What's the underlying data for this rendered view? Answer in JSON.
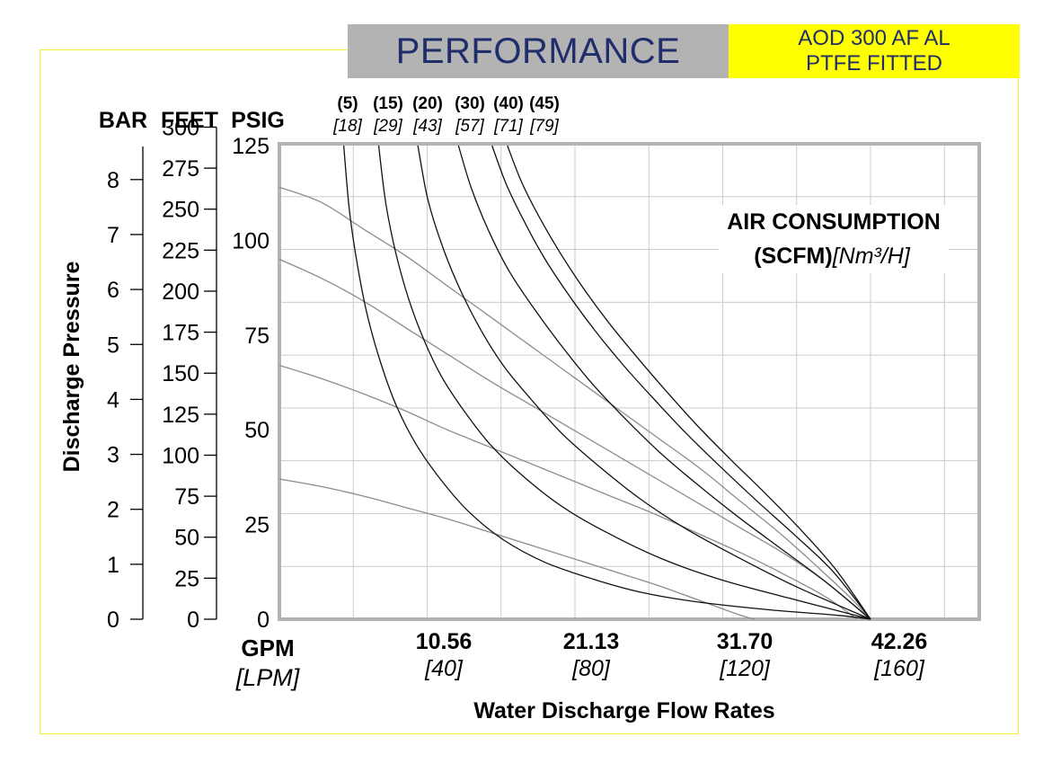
{
  "header": {
    "title": "PERFORMANCE",
    "model_line1": "AOD 300 AF AL",
    "model_line2": "PTFE FITTED"
  },
  "colors": {
    "title_bg": "#b3b3b3",
    "title_text": "#1f2d6b",
    "model_bg": "#ffff00",
    "frame": "#f2ee3a",
    "grid": "#cccccc",
    "plot_border": "#b3b3b3",
    "air_curve": "#111111",
    "pressure_curve": "#8c8c8c"
  },
  "chart_data": {
    "type": "line",
    "title": "AIR CONSUMPTION",
    "subtitle_bold": "(SCFM)",
    "subtitle_italic": "[Nm³/H]",
    "xlabel": "Water Discharge Flow Rates",
    "ylabel": "Discharge Pressure",
    "x_unit_primary": "GPM",
    "x_unit_secondary": "[LPM]",
    "xlim": [
      0,
      50
    ],
    "ylim": [
      0,
      125
    ],
    "grid": true,
    "x_ticks": [
      {
        "gpm": 10.56,
        "label": "10.56",
        "sub": "[40]"
      },
      {
        "gpm": 21.13,
        "label": "21.13",
        "sub": "[80]"
      },
      {
        "gpm": 31.7,
        "label": "31.70",
        "sub": "[120]"
      },
      {
        "gpm": 42.26,
        "label": "42.26",
        "sub": "[160]"
      }
    ],
    "y_axes": {
      "bar": {
        "header": "BAR",
        "ticks": [
          0,
          1,
          2,
          3,
          4,
          5,
          6,
          7,
          8
        ]
      },
      "feet": {
        "header": "FEET",
        "ticks": [
          0,
          25,
          50,
          75,
          100,
          125,
          150,
          175,
          200,
          225,
          250,
          275,
          300
        ]
      },
      "psig": {
        "header": "PSIG",
        "ticks": [
          0,
          25,
          50,
          75,
          100,
          125
        ]
      }
    },
    "air_consumption_series": [
      {
        "scfm": "(5)",
        "nm3h": "[18]",
        "points": [
          [
            4.6,
            125
          ],
          [
            5.0,
            108
          ],
          [
            5.6,
            93
          ],
          [
            6.3,
            80
          ],
          [
            7.3,
            67
          ],
          [
            8.4,
            56
          ],
          [
            9.8,
            46
          ],
          [
            11.5,
            37
          ],
          [
            13.5,
            28.5
          ],
          [
            16,
            21
          ],
          [
            19,
            15
          ],
          [
            22.5,
            10.5
          ],
          [
            26,
            7
          ],
          [
            30,
            4.5
          ],
          [
            35,
            2.5
          ],
          [
            40,
            1
          ],
          [
            42.26,
            0
          ]
        ]
      },
      {
        "scfm": "(15)",
        "nm3h": "[29]",
        "points": [
          [
            7.1,
            125
          ],
          [
            7.6,
            110
          ],
          [
            8.3,
            97
          ],
          [
            9.2,
            85
          ],
          [
            10.3,
            74
          ],
          [
            11.6,
            64
          ],
          [
            13.2,
            55
          ],
          [
            15.1,
            46
          ],
          [
            17.5,
            37.5
          ],
          [
            20.3,
            29.5
          ],
          [
            23.6,
            22.5
          ],
          [
            27.3,
            16
          ],
          [
            31.5,
            10.5
          ],
          [
            36.5,
            5.5
          ],
          [
            42.26,
            0
          ]
        ]
      },
      {
        "scfm": "(20)",
        "nm3h": "[43]",
        "points": [
          [
            9.9,
            125
          ],
          [
            10.6,
            111
          ],
          [
            11.6,
            99
          ],
          [
            12.8,
            88
          ],
          [
            14.3,
            77
          ],
          [
            16,
            67
          ],
          [
            18,
            58
          ],
          [
            20.2,
            49
          ],
          [
            22.8,
            40.5
          ],
          [
            25.7,
            32
          ],
          [
            29,
            24
          ],
          [
            32.7,
            16.5
          ],
          [
            37,
            8.5
          ],
          [
            42.26,
            0
          ]
        ]
      },
      {
        "scfm": "(30)",
        "nm3h": "[57]",
        "points": [
          [
            12.8,
            125
          ],
          [
            13.7,
            114
          ],
          [
            14.9,
            103
          ],
          [
            16.4,
            92
          ],
          [
            18.2,
            82
          ],
          [
            20.2,
            72
          ],
          [
            22.4,
            62
          ],
          [
            24.7,
            53
          ],
          [
            27.2,
            44
          ],
          [
            29.9,
            35.5
          ],
          [
            32.8,
            27
          ],
          [
            35.9,
            18.5
          ],
          [
            39,
            10
          ],
          [
            42.26,
            0
          ]
        ]
      },
      {
        "scfm": "(40)",
        "nm3h": "[71]",
        "points": [
          [
            15.2,
            125
          ],
          [
            16.2,
            115
          ],
          [
            17.5,
            105
          ],
          [
            19,
            95
          ],
          [
            20.7,
            85.5
          ],
          [
            22.6,
            76
          ],
          [
            24.6,
            67
          ],
          [
            26.8,
            58
          ],
          [
            29.1,
            49
          ],
          [
            31.6,
            40
          ],
          [
            34.2,
            31
          ],
          [
            36.9,
            22
          ],
          [
            39.6,
            12.5
          ],
          [
            42.26,
            0
          ]
        ]
      },
      {
        "scfm": "(45)",
        "nm3h": "[79]",
        "points": [
          [
            16.3,
            125
          ],
          [
            17.3,
            115.5
          ],
          [
            18.6,
            106
          ],
          [
            20.1,
            96.5
          ],
          [
            21.8,
            87
          ],
          [
            23.6,
            78
          ],
          [
            25.6,
            69
          ],
          [
            27.7,
            60
          ],
          [
            29.9,
            51
          ],
          [
            32.3,
            42
          ],
          [
            34.8,
            33
          ],
          [
            37.3,
            23.5
          ],
          [
            39.8,
            13
          ],
          [
            42.26,
            0
          ]
        ]
      }
    ],
    "pressure_series": [
      {
        "points": [
          [
            0,
            114
          ],
          [
            3,
            110
          ],
          [
            6,
            103
          ],
          [
            9,
            96
          ],
          [
            12,
            88
          ],
          [
            15,
            80
          ],
          [
            18,
            72
          ],
          [
            21,
            64
          ],
          [
            24,
            56
          ],
          [
            27,
            48
          ],
          [
            30,
            40
          ],
          [
            33,
            31
          ],
          [
            36,
            22
          ],
          [
            39,
            12
          ],
          [
            41,
            5
          ],
          [
            42.26,
            0
          ]
        ]
      },
      {
        "points": [
          [
            0,
            95
          ],
          [
            3,
            90
          ],
          [
            6,
            84
          ],
          [
            9,
            77
          ],
          [
            12,
            70
          ],
          [
            15,
            63
          ],
          [
            18,
            56.5
          ],
          [
            21,
            50
          ],
          [
            24,
            43.5
          ],
          [
            27,
            37
          ],
          [
            30,
            30.5
          ],
          [
            33,
            24
          ],
          [
            36,
            17.5
          ],
          [
            39,
            10
          ],
          [
            42.26,
            0
          ]
        ]
      },
      {
        "points": [
          [
            0,
            67
          ],
          [
            3,
            63.5
          ],
          [
            6,
            59.5
          ],
          [
            9,
            55
          ],
          [
            12,
            50
          ],
          [
            15,
            45.5
          ],
          [
            18,
            41
          ],
          [
            21,
            36.5
          ],
          [
            24,
            32
          ],
          [
            27,
            27.5
          ],
          [
            30,
            22.5
          ],
          [
            33,
            17.5
          ],
          [
            36,
            12
          ],
          [
            39,
            6
          ],
          [
            41.3,
            0
          ]
        ]
      },
      {
        "points": [
          [
            0,
            37
          ],
          [
            3,
            35
          ],
          [
            6,
            32.5
          ],
          [
            9,
            29.5
          ],
          [
            12,
            26.5
          ],
          [
            15,
            23
          ],
          [
            18,
            19.5
          ],
          [
            21,
            16
          ],
          [
            24,
            12.5
          ],
          [
            27,
            9
          ],
          [
            30,
            5
          ],
          [
            33,
            1
          ],
          [
            34,
            0
          ]
        ]
      }
    ]
  }
}
